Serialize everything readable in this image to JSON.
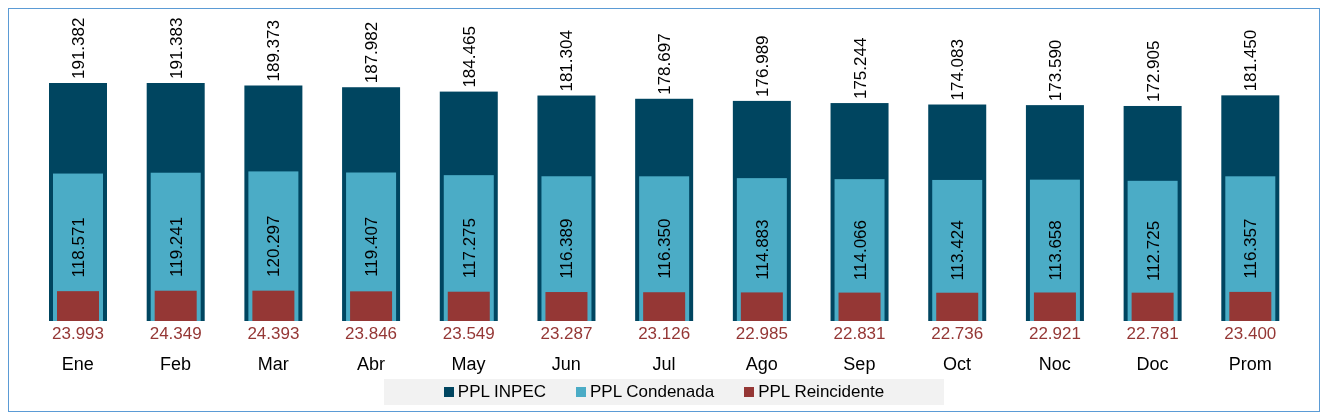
{
  "chart_data": {
    "type": "bar",
    "categories": [
      "Ene",
      "Feb",
      "Mar",
      "Abr",
      "May",
      "Jun",
      "Jul",
      "Ago",
      "Sep",
      "Oct",
      "Noc",
      "Doc",
      "Prom"
    ],
    "series": [
      {
        "name": "PPL INPEC",
        "color": "#004560",
        "values": [
          191382,
          191383,
          189373,
          187982,
          184465,
          181304,
          178697,
          176989,
          175244,
          174083,
          173590,
          172905,
          181450
        ],
        "value_labels": [
          "191.382",
          "191.383",
          "189.373",
          "187.982",
          "184.465",
          "181.304",
          "178.697",
          "176.989",
          "175.244",
          "174.083",
          "173.590",
          "172.905",
          "181.450"
        ]
      },
      {
        "name": "PPL Condenada",
        "color": "#4bacc6",
        "values": [
          118571,
          119241,
          120297,
          119407,
          117275,
          116389,
          116350,
          114883,
          114066,
          113424,
          113658,
          112725,
          116357
        ],
        "value_labels": [
          "118.571",
          "119.241",
          "120.297",
          "119.407",
          "117.275",
          "116.389",
          "116.350",
          "114.883",
          "114.066",
          "113.424",
          "113.658",
          "112.725",
          "116.357"
        ]
      },
      {
        "name": "PPL Reincidente",
        "color": "#953735",
        "values": [
          23993,
          24349,
          24393,
          23846,
          23549,
          23287,
          23126,
          22985,
          22831,
          22736,
          22921,
          22781,
          23400
        ],
        "value_labels": [
          "23.993",
          "24.349",
          "24.393",
          "23.846",
          "23.549",
          "23.287",
          "23.126",
          "22.985",
          "22.831",
          "22.736",
          "22.921",
          "22.781",
          "23.400"
        ]
      }
    ],
    "legend": "bottom",
    "grid": false
  }
}
